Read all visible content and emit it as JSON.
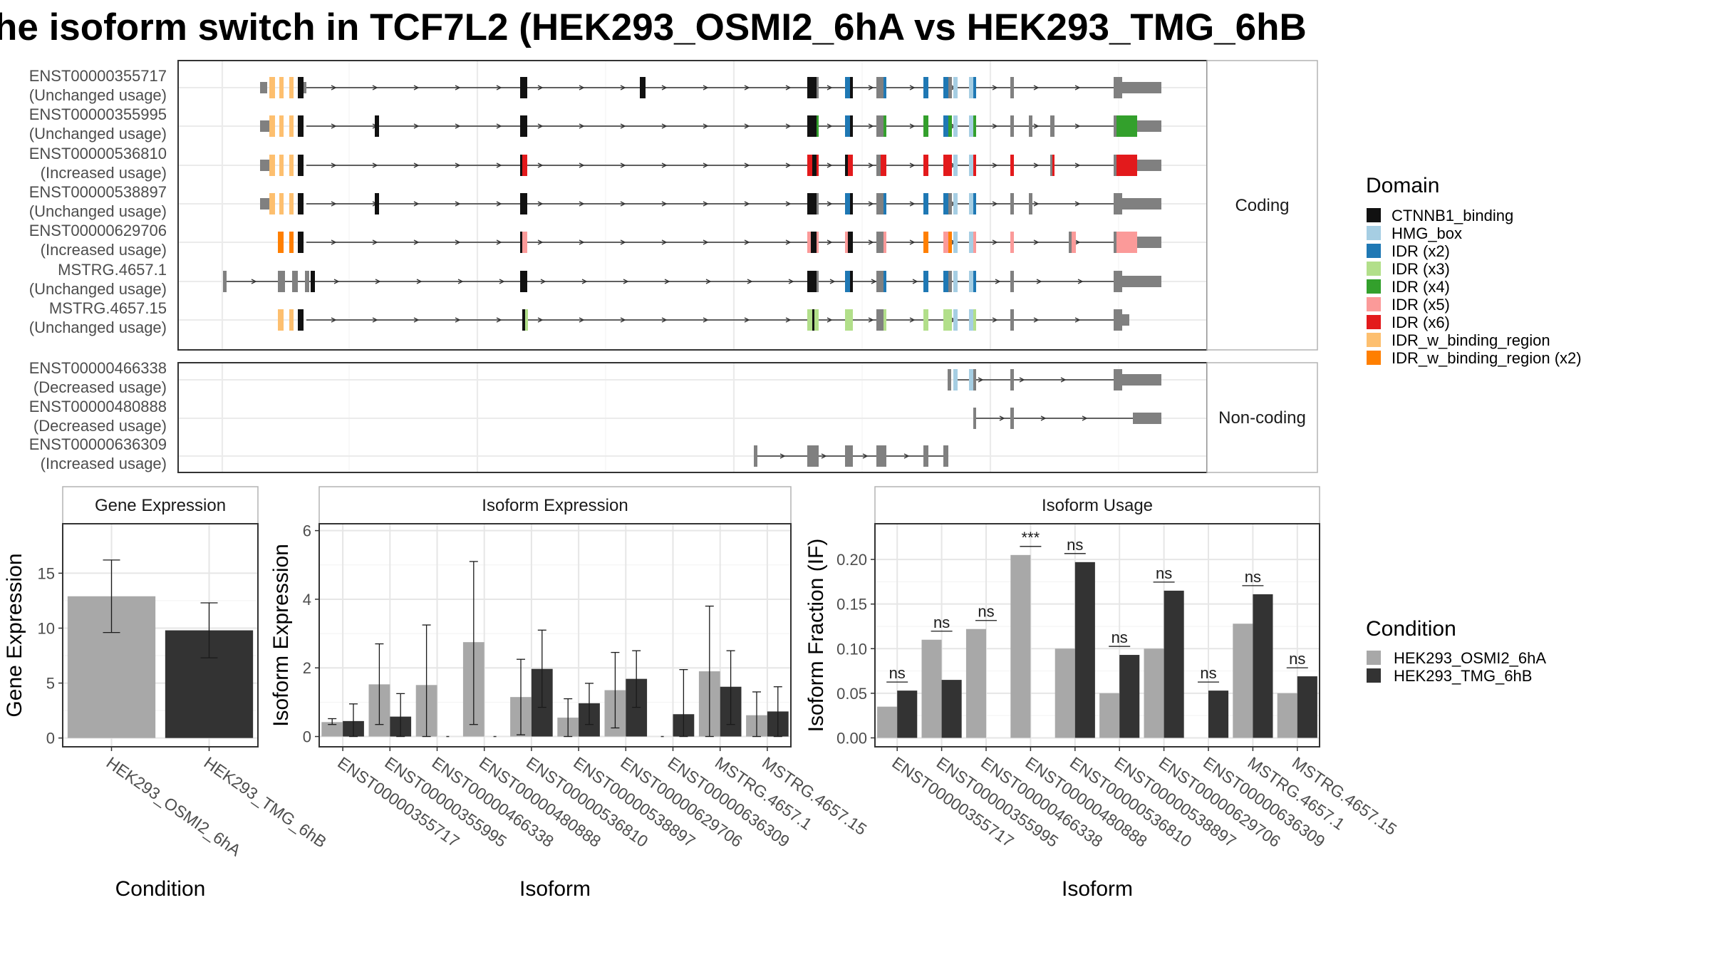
{
  "title": "he isoform switch in TCF7L2 (HEK293_OSMI2_6hA vs HEK293_TMG_6hB",
  "colors": {
    "cond1": "#a8a8a8",
    "cond2": "#333333",
    "intron": "#333333",
    "exon": "#808080"
  },
  "chart_data": [
    {
      "type": "gene_structure",
      "panels": [
        {
          "label": "Coding",
          "transcripts": [
            {
              "id": "ENST00000355717",
              "usage": "(Unchanged usage)"
            },
            {
              "id": "ENST00000355995",
              "usage": "(Unchanged usage)"
            },
            {
              "id": "ENST00000536810",
              "usage": "(Increased usage)"
            },
            {
              "id": "ENST00000538897",
              "usage": "(Unchanged usage)"
            },
            {
              "id": "ENST00000629706",
              "usage": "(Increased usage)"
            },
            {
              "id": "MSTRG.4657.1",
              "usage": "(Unchanged usage)"
            },
            {
              "id": "MSTRG.4657.15",
              "usage": "(Unchanged usage)"
            }
          ]
        },
        {
          "label": "Non-coding",
          "transcripts": [
            {
              "id": "ENST00000466338",
              "usage": "(Decreased usage)"
            },
            {
              "id": "ENST00000480888",
              "usage": "(Decreased usage)"
            },
            {
              "id": "ENST00000636309",
              "usage": "(Increased usage)"
            }
          ]
        }
      ],
      "legend": {
        "title": "Domain",
        "items": [
          {
            "label": "CTNNB1_binding",
            "color": "#111111"
          },
          {
            "label": "HMG_box",
            "color": "#a6cee3"
          },
          {
            "label": "IDR (x2)",
            "color": "#1f78b4"
          },
          {
            "label": "IDR (x3)",
            "color": "#b2df8a"
          },
          {
            "label": "IDR (x4)",
            "color": "#33a02c"
          },
          {
            "label": "IDR (x5)",
            "color": "#fb9a99"
          },
          {
            "label": "IDR (x6)",
            "color": "#e31a1c"
          },
          {
            "label": "IDR_w_binding_region",
            "color": "#fdbf6f"
          },
          {
            "label": "IDR_w_binding_region (x2)",
            "color": "#ff7f00"
          }
        ]
      }
    },
    {
      "type": "bar",
      "title": "Gene Expression",
      "xlabel": "Condition",
      "ylabel": "Gene Expression",
      "categories": [
        "HEK293_OSMI2_6hA",
        "HEK293_TMG_6hB"
      ],
      "values": [
        12.9,
        9.8
      ],
      "err_low": [
        9.6,
        7.3
      ],
      "err_high": [
        16.2,
        12.3
      ],
      "ylim": [
        -0.8,
        19.5
      ],
      "yticks": [
        0,
        5,
        10,
        15
      ]
    },
    {
      "type": "bar",
      "title": "Isoform Expression",
      "xlabel": "Isoform",
      "ylabel": "Isoform Expression",
      "categories": [
        "ENST00000355717",
        "ENST00000355995",
        "ENST00000466338",
        "ENST00000480888",
        "ENST00000536810",
        "ENST00000538897",
        "ENST00000629706",
        "ENST00000636309",
        "MSTRG.4657.1",
        "MSTRG.4657.15"
      ],
      "series": [
        {
          "name": "HEK293_OSMI2_6hA",
          "values": [
            0.42,
            1.52,
            1.5,
            2.75,
            1.15,
            0.55,
            1.35,
            0.0,
            1.9,
            0.62
          ],
          "err_low": [
            0.35,
            0.35,
            0.0,
            0.35,
            0.05,
            0.0,
            0.25,
            0.0,
            0.0,
            0.0
          ],
          "err_high": [
            0.52,
            2.7,
            3.25,
            5.1,
            2.25,
            1.1,
            2.45,
            0.0,
            3.8,
            1.3
          ]
        },
        {
          "name": "HEK293_TMG_6hB",
          "values": [
            0.45,
            0.58,
            0.0,
            0.0,
            1.97,
            0.97,
            1.68,
            0.65,
            1.45,
            0.73
          ],
          "err_low": [
            0.0,
            0.0,
            0.0,
            0.0,
            0.85,
            0.35,
            0.85,
            0.0,
            0.35,
            0.0
          ],
          "err_high": [
            0.95,
            1.25,
            0.0,
            0.0,
            3.1,
            1.55,
            2.5,
            1.95,
            2.5,
            1.45
          ]
        }
      ],
      "ylim": [
        -0.3,
        6.2
      ],
      "yticks": [
        0,
        2,
        4,
        6
      ]
    },
    {
      "type": "bar",
      "title": "Isoform Usage",
      "xlabel": "Isoform",
      "ylabel": "Isoform Fraction (IF)",
      "categories": [
        "ENST00000355717",
        "ENST00000355995",
        "ENST00000466338",
        "ENST00000480888",
        "ENST00000536810",
        "ENST00000538897",
        "ENST00000629706",
        "ENST00000636309",
        "MSTRG.4657.1",
        "MSTRG.4657.15"
      ],
      "series": [
        {
          "name": "HEK293_OSMI2_6hA",
          "values": [
            0.035,
            0.11,
            0.122,
            0.205,
            0.1,
            0.05,
            0.1,
            0.0,
            0.128,
            0.05
          ]
        },
        {
          "name": "HEK293_TMG_6hB",
          "values": [
            0.053,
            0.065,
            0.0,
            0.0,
            0.197,
            0.093,
            0.165,
            0.053,
            0.161,
            0.069
          ]
        }
      ],
      "significance": [
        "ns",
        "ns",
        "ns",
        "***",
        "ns",
        "ns",
        "ns",
        "ns",
        "ns",
        "ns"
      ],
      "ylim": [
        -0.01,
        0.24
      ],
      "yticks": [
        "0.00",
        "0.05",
        "0.10",
        "0.15",
        "0.20"
      ]
    }
  ],
  "condition_legend": {
    "title": "Condition",
    "items": [
      {
        "label": "HEK293_OSMI2_6hA",
        "color": "#a8a8a8"
      },
      {
        "label": "HEK293_TMG_6hB",
        "color": "#333333"
      }
    ]
  }
}
